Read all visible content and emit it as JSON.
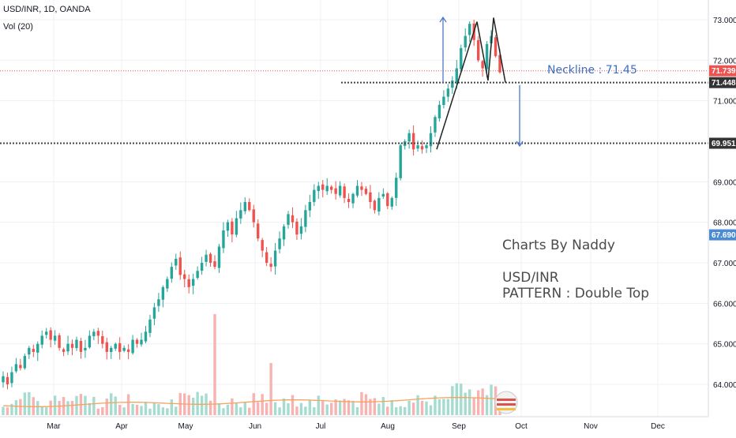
{
  "header": {
    "symbol": "USD/INR, 1D, OANDA",
    "volume_label": "Vol (20)"
  },
  "colors": {
    "up": "#26a69a",
    "down": "#ef5350",
    "up_vol": "#a5dccf",
    "down_vol": "#f7b3b1",
    "vol_ma": "#f4a460",
    "level_line": "#444444",
    "pattern_line": "#222222",
    "arrow": "#4a79c9",
    "current_price_line": "#ef5350"
  },
  "chart_data": {
    "type": "candlestick",
    "y_axis": {
      "ticks": [
        "73.000",
        "72.000",
        "71.000",
        "70.000",
        "69.000",
        "68.000",
        "67.000",
        "66.000",
        "65.000",
        "64.000"
      ],
      "range": [
        63.2,
        73.4
      ]
    },
    "x_axis": {
      "ticks": [
        "Mar",
        "Apr",
        "May",
        "Jun",
        "Jul",
        "Aug",
        "Sep",
        "Oct",
        "Nov",
        "Dec"
      ]
    },
    "ohlc_close_series": [
      64.2,
      64.0,
      64.3,
      64.5,
      64.4,
      64.7,
      64.9,
      64.8,
      65.0,
      65.2,
      65.3,
      65.1,
      65.2,
      64.9,
      64.8,
      65.0,
      64.9,
      65.1,
      64.8,
      64.9,
      65.2,
      65.3,
      65.2,
      65.0,
      64.8,
      64.9,
      65.0,
      64.8,
      64.9,
      64.8,
      65.1,
      65.0,
      65.1,
      65.3,
      65.6,
      65.9,
      66.1,
      66.4,
      66.6,
      66.9,
      67.1,
      66.7,
      66.6,
      66.4,
      66.6,
      66.8,
      67.0,
      67.2,
      67.0,
      66.9,
      67.4,
      67.8,
      68.0,
      67.7,
      68.1,
      68.3,
      68.5,
      68.3,
      68.0,
      67.6,
      67.3,
      67.0,
      66.9,
      67.3,
      67.6,
      67.9,
      68.2,
      68.0,
      67.7,
      67.9,
      68.3,
      68.5,
      68.8,
      68.9,
      68.8,
      68.9,
      68.8,
      68.7,
      68.9,
      68.6,
      68.5,
      68.7,
      68.9,
      68.8,
      68.7,
      68.5,
      68.3,
      68.6,
      68.7,
      68.4,
      68.6,
      69.1,
      69.9,
      70.0,
      70.2,
      69.8,
      69.9,
      69.8,
      69.9,
      70.2,
      70.6,
      70.9,
      71.1,
      71.3,
      71.5,
      71.8,
      72.3,
      72.6,
      72.9,
      72.5,
      72.0,
      71.8,
      72.4,
      72.6,
      72.1,
      71.7
    ],
    "levels": [
      {
        "price": 71.448,
        "label": "71.448"
      },
      {
        "price": 69.951,
        "label": "69.951"
      }
    ],
    "price_labels": [
      {
        "price": 71.739,
        "label": "71.739",
        "color": "#ef5350"
      },
      {
        "price": 71.448,
        "label": "71.448",
        "color": "#333333"
      },
      {
        "price": 69.951,
        "label": "69.951",
        "color": "#333333"
      },
      {
        "price": 67.69,
        "label": "67.690",
        "color": "#4a8bd3"
      }
    ],
    "annotations": {
      "neckline": "Neckline : 71.45",
      "author": "Charts By Naddy",
      "pair": "USD/INR",
      "pattern": "PATTERN : Double Top"
    }
  }
}
